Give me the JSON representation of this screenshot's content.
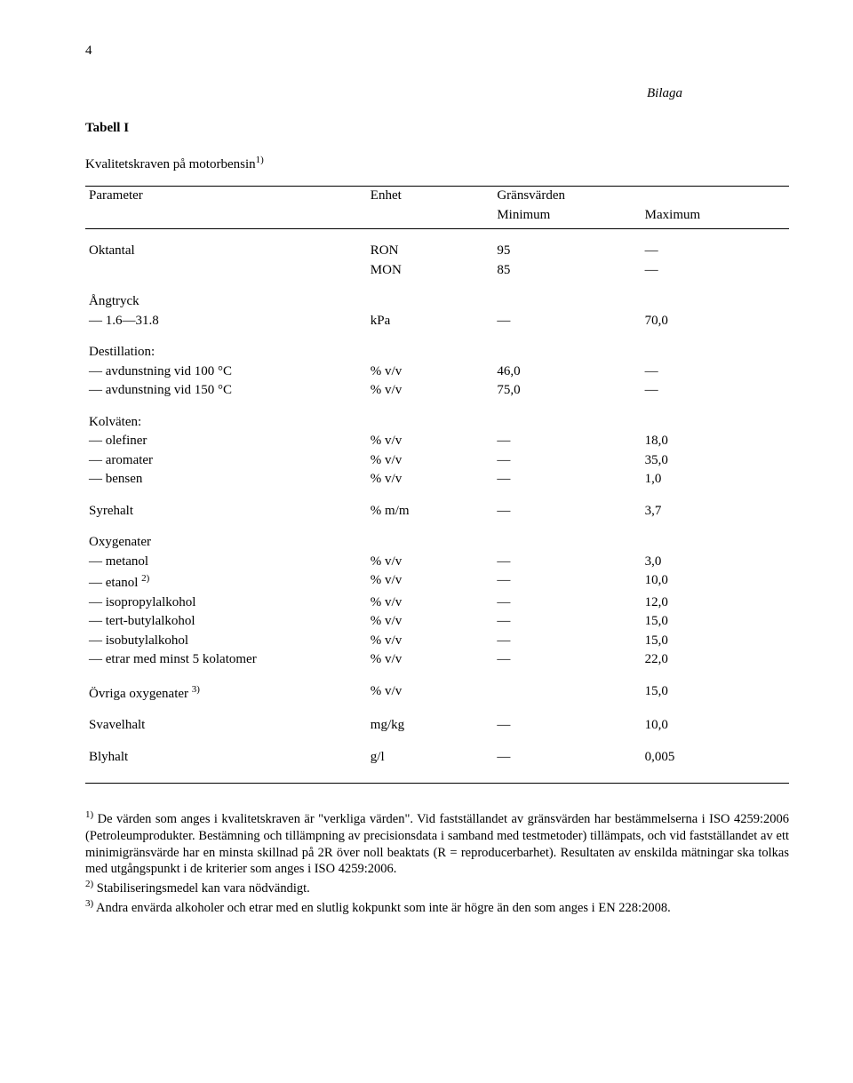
{
  "page_number": "4",
  "bilaga": "Bilaga",
  "table_label": "Tabell I",
  "subtitle_text": "Kvalitetskraven på motorbensin",
  "subtitle_sup": "1)",
  "headers": {
    "param": "Parameter",
    "unit": "Enhet",
    "limits": "Gränsvärden",
    "min": "Minimum",
    "max": "Maximum"
  },
  "rows": {
    "oktantal_label": "Oktantal",
    "ron": {
      "unit": "RON",
      "min": "95",
      "max": "—"
    },
    "mon": {
      "unit": "MON",
      "min": "85",
      "max": "—"
    },
    "angtryck_label": "Ångtryck",
    "angtryck": {
      "label": "1.6—31.8",
      "unit": "kPa",
      "min": "—",
      "max": "70,0"
    },
    "destillation_label": "Destillation:",
    "dest100": {
      "label": "avdunstning vid 100 °C",
      "unit": "% v/v",
      "min": "46,0",
      "max": "—"
    },
    "dest150": {
      "label": "avdunstning vid 150 °C",
      "unit": "% v/v",
      "min": "75,0",
      "max": "—"
    },
    "kolvaten_label": "Kolväten:",
    "olefiner": {
      "label": "olefiner",
      "unit": "% v/v",
      "min": "—",
      "max": "18,0"
    },
    "aromater": {
      "label": "aromater",
      "unit": "% v/v",
      "min": "—",
      "max": "35,0"
    },
    "bensen": {
      "label": "bensen",
      "unit": "% v/v",
      "min": "—",
      "max": "1,0"
    },
    "syrehalt": {
      "label": "Syrehalt",
      "unit": "% m/m",
      "min": "—",
      "max": "3,7"
    },
    "oxygenater_label": "Oxygenater",
    "metanol": {
      "label": "metanol",
      "unit": "% v/v",
      "min": "—",
      "max": "3,0"
    },
    "etanol": {
      "label": "etanol",
      "sup": "2)",
      "unit": "% v/v",
      "min": "—",
      "max": "10,0"
    },
    "isoprop": {
      "label": "isopropylalkohol",
      "unit": "% v/v",
      "min": "—",
      "max": "12,0"
    },
    "tertbut": {
      "label": "tert-butylalkohol",
      "unit": "% v/v",
      "min": "—",
      "max": "15,0"
    },
    "isobut": {
      "label": "isobutylalkohol",
      "unit": "% v/v",
      "min": "—",
      "max": "15,0"
    },
    "etrar": {
      "label": "etrar med minst 5 kolatomer",
      "unit": "% v/v",
      "min": "—",
      "max": "22,0"
    },
    "ovriga": {
      "label": "Övriga oxygenater",
      "sup": "3)",
      "unit": "% v/v",
      "min": "",
      "max": "15,0"
    },
    "svavel": {
      "label": "Svavelhalt",
      "unit": "mg/kg",
      "min": "—",
      "max": "10,0"
    },
    "bly": {
      "label": "Blyhalt",
      "unit": "g/l",
      "min": "—",
      "max": "0,005"
    }
  },
  "footnotes": {
    "f1_sup": "1)",
    "f1": " De värden som anges i kvalitetskraven är \"verkliga värden\". Vid fastställandet av gränsvärden har bestämmelserna i ISO 4259:2006 (Petroleumprodukter. Bestämning och tillämpning av precisionsdata i samband med testmetoder) tillämpats, och vid fastställandet av ett minimigränsvärde har en minsta skillnad på 2R över noll beaktats (R = reproducerbarhet). Resultaten av enskilda mätningar ska tolkas med utgångspunkt i de kriterier som anges i ISO 4259:2006.",
    "f2_sup": "2)",
    "f2": " Stabiliseringsmedel kan vara nödvändigt.",
    "f3_sup": "3)",
    "f3": " Andra envärda alkoholer och etrar med en slutlig kokpunkt som inte är högre än den som anges i EN 228:2008."
  }
}
